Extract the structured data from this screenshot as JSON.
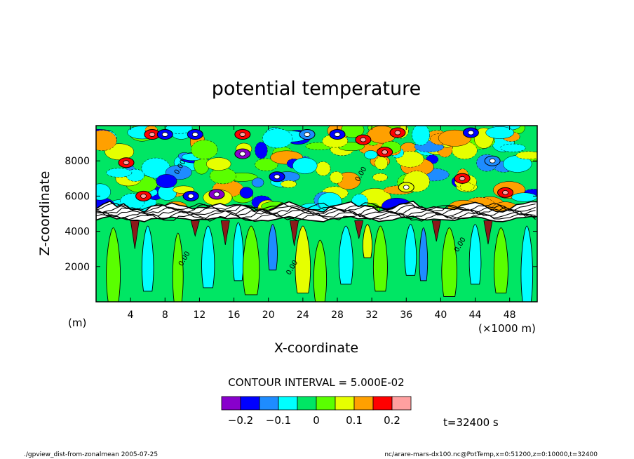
{
  "chart_data": {
    "type": "contour",
    "title": "potential temperature",
    "xlabel": "X-coordinate",
    "ylabel": "Z-coordinate",
    "x_unit_left": "(m)",
    "x_unit_right": "(×1000 m)",
    "xlim": [
      0,
      51.2
    ],
    "ylim": [
      0,
      10000
    ],
    "xticks": [
      4,
      8,
      12,
      16,
      20,
      24,
      28,
      32,
      36,
      40,
      44,
      48
    ],
    "yticks": [
      2000,
      4000,
      6000,
      8000
    ],
    "contour_interval_text": "CONTOUR INTERVAL = 5.000E-02",
    "contour_label": "0.00",
    "colorbar": {
      "colors": [
        "#8800cc",
        "#0000ff",
        "#1e8cff",
        "#00ffff",
        "#00e664",
        "#5aff00",
        "#e6ff00",
        "#ffa000",
        "#ff0000",
        "#ffa0a0"
      ],
      "tick_labels": [
        "−0.2",
        "−0.1",
        "0",
        "0.1",
        "0.2"
      ]
    },
    "time_label": "t=32400 s"
  },
  "footer": {
    "left": "./gpview_dist-from-zonalmean  2005-07-25",
    "right": "nc/arare-mars-dx100.nc@PotTemp,x=0:51200,z=0:10000,t=32400"
  }
}
